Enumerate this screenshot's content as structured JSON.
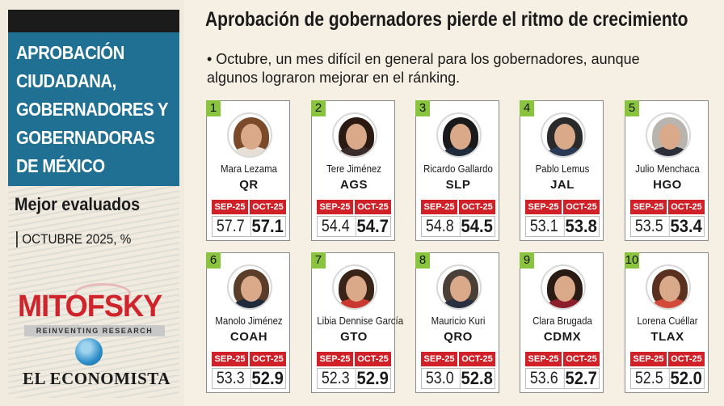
{
  "sidebar": {
    "heading_lines": [
      "APROBACIÓN",
      "CIUDADANA,",
      "GOBERNADORES Y",
      "GOBERNADORAS",
      "DE MÉXICO"
    ],
    "subheading": "Mejor evaluados",
    "period": "OCTUBRE 2025, %",
    "pollster_logo": "MITOFSKY",
    "pollster_tagline": "REINVENTING RESEARCH",
    "publisher": "EL ECONOMISTA"
  },
  "header": {
    "title": "Aprobación de gobernadores pierde el ritmo de crecimiento",
    "subtitle": "• Octubre, un mes difícil en general para los gobernadores, aunque algunos lograron mejorar en el ránking."
  },
  "labels": {
    "prev": "SEP-25",
    "curr": "OCT-25"
  },
  "governors": [
    {
      "rank": "1",
      "name": "Mara Lezama",
      "state": "QR",
      "sep": "57.7",
      "oct": "57.1",
      "hair": "#7a4a2a",
      "body": "#e6dfd6"
    },
    {
      "rank": "2",
      "name": "Tere Jiménez",
      "state": "AGS",
      "sep": "54.4",
      "oct": "54.7",
      "hair": "#2a1a12",
      "body": "#3a2c2a"
    },
    {
      "rank": "3",
      "name": "Ricardo Gallardo",
      "state": "SLP",
      "sep": "54.8",
      "oct": "54.5",
      "hair": "#1a1a1a",
      "body": "#1f2a3a"
    },
    {
      "rank": "4",
      "name": "Pablo Lemus",
      "state": "JAL",
      "sep": "53.1",
      "oct": "53.8",
      "hair": "#2a2a2a",
      "body": "#2a3a55"
    },
    {
      "rank": "5",
      "name": "Julio Menchaca",
      "state": "HGO",
      "sep": "53.5",
      "oct": "53.4",
      "hair": "#b9b4ae",
      "body": "#2a2f3a"
    },
    {
      "rank": "6",
      "name": "Manolo Jiménez",
      "state": "COAH",
      "sep": "53.3",
      "oct": "52.9",
      "hair": "#5a3e2a",
      "body": "#1f2a3a"
    },
    {
      "rank": "7",
      "name": "Libia Dennise García",
      "state": "GTO",
      "sep": "52.3",
      "oct": "52.9",
      "hair": "#3a2418",
      "body": "#c9382e"
    },
    {
      "rank": "8",
      "name": "Mauricio Kuri",
      "state": "QRO",
      "sep": "53.0",
      "oct": "52.8",
      "hair": "#4a4038",
      "body": "#2a3040"
    },
    {
      "rank": "9",
      "name": "Clara Brugada",
      "state": "CDMX",
      "sep": "53.6",
      "oct": "52.7",
      "hair": "#2a1a14",
      "body": "#8a1e2a"
    },
    {
      "rank": "10",
      "name": "Lorena Cuéllar",
      "state": "TLAX",
      "sep": "52.5",
      "oct": "52.0",
      "hair": "#5a3020",
      "body": "#d24a3a"
    }
  ]
}
